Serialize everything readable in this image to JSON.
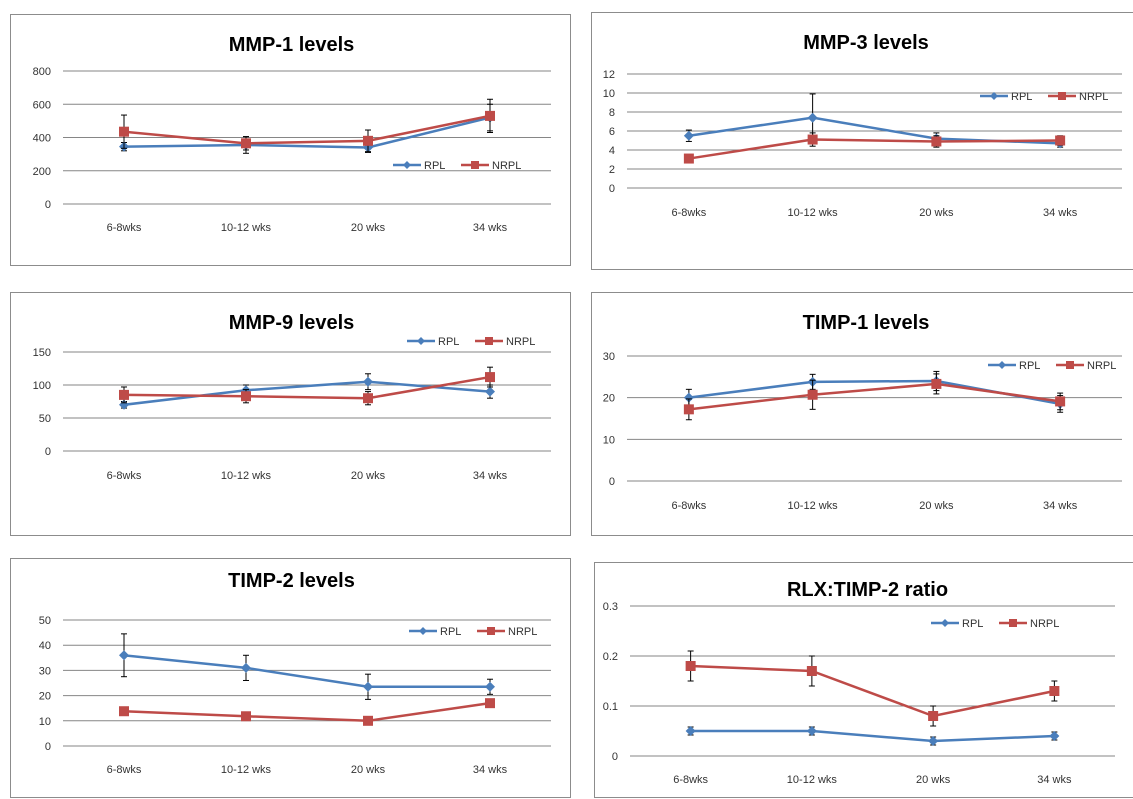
{
  "colors": {
    "RPL": "#4a7ebb",
    "NRPL": "#be4b48",
    "grid": "#868686"
  },
  "chart_data": [
    {
      "type": "line",
      "title": "MMP-1 levels",
      "categories": [
        "6-8wks",
        "10-12 wks",
        "20 wks",
        "34 wks"
      ],
      "yticks": [
        "0",
        "200",
        "400",
        "600",
        "800"
      ],
      "ylim": [
        0,
        800
      ],
      "legend": "right",
      "series": [
        {
          "name": "RPL",
          "values": [
            345,
            355,
            340,
            520
          ],
          "error": [
            25,
            50,
            30,
            80
          ]
        },
        {
          "name": "NRPL",
          "values": [
            435,
            365,
            380,
            530
          ],
          "error": [
            100,
            40,
            65,
            100
          ]
        }
      ]
    },
    {
      "type": "line",
      "title": "MMP-3 levels",
      "categories": [
        "6-8wks",
        "10-12 wks",
        "20 wks",
        "34 wks"
      ],
      "yticks": [
        "0",
        "2",
        "4",
        "6",
        "8",
        "10",
        "12"
      ],
      "ylim": [
        0,
        12
      ],
      "legend": "top-right",
      "series": [
        {
          "name": "RPL",
          "values": [
            5.5,
            7.4,
            5.2,
            4.7
          ],
          "error": [
            0.6,
            2.5,
            0.6,
            0.4
          ]
        },
        {
          "name": "NRPL",
          "values": [
            3.1,
            5.1,
            4.9,
            5.0
          ],
          "error": [
            0.3,
            0.7,
            0.6,
            0.5
          ]
        }
      ]
    },
    {
      "type": "line",
      "title": "MMP-9 levels",
      "categories": [
        "6-8wks",
        "10-12 wks",
        "20 wks",
        "34 wks"
      ],
      "yticks": [
        "0",
        "50",
        "100",
        "150"
      ],
      "ylim": [
        0,
        150
      ],
      "legend": "top-right",
      "series": [
        {
          "name": "RPL",
          "values": [
            70,
            92,
            105,
            90
          ],
          "error": [
            5,
            8,
            12,
            10
          ]
        },
        {
          "name": "NRPL",
          "values": [
            85,
            83,
            80,
            112
          ],
          "error": [
            12,
            10,
            10,
            15
          ]
        }
      ]
    },
    {
      "type": "line",
      "title": "TIMP-1 levels",
      "categories": [
        "6-8wks",
        "10-12 wks",
        "20 wks",
        "34 wks"
      ],
      "yticks": [
        "0",
        "10",
        "20",
        "30"
      ],
      "ylim": [
        0,
        30
      ],
      "legend": "top-right",
      "series": [
        {
          "name": "RPL",
          "values": [
            20,
            23.8,
            24,
            18.5
          ],
          "error": [
            2,
            1.8,
            2.3,
            2
          ]
        },
        {
          "name": "NRPL",
          "values": [
            17.2,
            20.7,
            23.3,
            19.1
          ],
          "error": [
            2.5,
            3.5,
            2.4,
            2
          ]
        }
      ]
    },
    {
      "type": "line",
      "title": "TIMP-2 levels",
      "categories": [
        "6-8wks",
        "10-12 wks",
        "20 wks",
        "34 wks"
      ],
      "yticks": [
        "0",
        "10",
        "20",
        "30",
        "40",
        "50"
      ],
      "ylim": [
        0,
        50
      ],
      "legend": "top-right",
      "series": [
        {
          "name": "RPL",
          "values": [
            36,
            31,
            23.5,
            23.5
          ],
          "error": [
            8.5,
            5,
            5,
            3
          ]
        },
        {
          "name": "NRPL",
          "values": [
            13.8,
            11.8,
            10,
            17
          ],
          "error": [
            0,
            0,
            0,
            0
          ]
        }
      ]
    },
    {
      "type": "line",
      "title": "RLX:TIMP-2 ratio",
      "categories": [
        "6-8wks",
        "10-12 wks",
        "20 wks",
        "34 wks"
      ],
      "yticks": [
        "0",
        "0.1",
        "0.2",
        "0.3"
      ],
      "ylim": [
        0,
        0.3
      ],
      "legend": "top-right",
      "series": [
        {
          "name": "RPL",
          "values": [
            0.05,
            0.05,
            0.03,
            0.04
          ],
          "error": [
            0.008,
            0.008,
            0.008,
            0.008
          ]
        },
        {
          "name": "NRPL",
          "values": [
            0.18,
            0.17,
            0.08,
            0.13
          ],
          "error": [
            0.03,
            0.03,
            0.02,
            0.02
          ]
        }
      ]
    }
  ]
}
